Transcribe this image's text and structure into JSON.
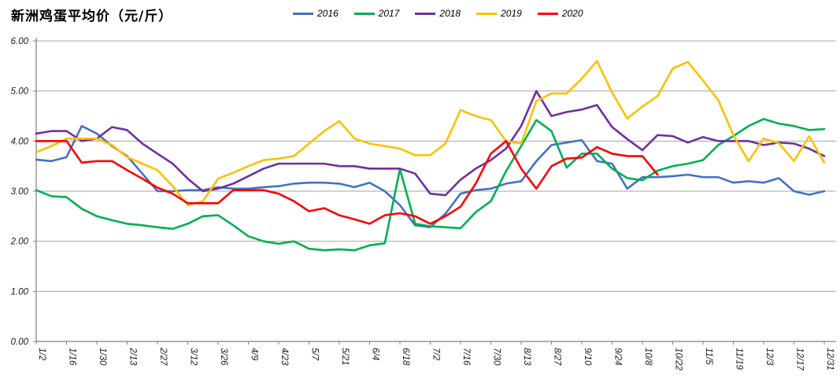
{
  "header": {
    "title": "新洲鸡蛋平均价（元/斤）"
  },
  "legend": {
    "items": [
      {
        "label": "2016",
        "color": "#4472C4"
      },
      {
        "label": "2017",
        "color": "#00B050"
      },
      {
        "label": "2018",
        "color": "#7030A0"
      },
      {
        "label": "2019",
        "color": "#FFC000"
      },
      {
        "label": "2020",
        "color": "#FF0000"
      }
    ]
  },
  "colors": {
    "gridline": "#A6A6A6",
    "axis": "#808080",
    "tick_text": "#1a1a1a"
  },
  "chart_data": {
    "type": "line",
    "title": "新洲鸡蛋平均价（元/斤）",
    "xlabel": "",
    "ylabel": "",
    "ylim": [
      0,
      6
    ],
    "y_ticks": [
      0,
      1,
      2,
      3,
      4,
      5,
      6
    ],
    "y_tick_labels": [
      "0.00",
      "1.00",
      "2.00",
      "3.00",
      "4.00",
      "5.00",
      "6.00"
    ],
    "grid": "horizontal",
    "legend_position": "top",
    "x_tick_labels": [
      "1/2",
      "1/16",
      "1/30",
      "2/13",
      "2/27",
      "3/12",
      "3/26",
      "4/9",
      "4/23",
      "5/7",
      "5/21",
      "6/4",
      "6/18",
      "7/2",
      "7/16",
      "7/30",
      "8/13",
      "8/27",
      "9/10",
      "9/24",
      "10/8",
      "10/22",
      "11/5",
      "11/19",
      "12/3",
      "12/17",
      "12/31"
    ],
    "x": [
      "1/2",
      "1/9",
      "1/16",
      "1/23",
      "1/30",
      "2/6",
      "2/13",
      "2/20",
      "2/27",
      "3/5",
      "3/12",
      "3/19",
      "3/26",
      "4/2",
      "4/9",
      "4/16",
      "4/23",
      "4/30",
      "5/7",
      "5/14",
      "5/21",
      "5/28",
      "6/4",
      "6/11",
      "6/18",
      "6/25",
      "7/2",
      "7/9",
      "7/16",
      "7/23",
      "7/30",
      "8/6",
      "8/13",
      "8/20",
      "8/27",
      "9/3",
      "9/10",
      "9/17",
      "9/24",
      "10/1",
      "10/8",
      "10/15",
      "10/22",
      "10/29",
      "11/5",
      "11/12",
      "11/19",
      "11/26",
      "12/3",
      "12/10",
      "12/17",
      "12/24",
      "12/31"
    ],
    "series": [
      {
        "name": "2016",
        "color": "#4472C4",
        "values": [
          3.63,
          3.6,
          3.68,
          4.3,
          4.15,
          3.9,
          3.7,
          3.35,
          3.0,
          3.0,
          3.02,
          3.02,
          3.08,
          3.05,
          3.05,
          3.08,
          3.1,
          3.15,
          3.17,
          3.17,
          3.15,
          3.08,
          3.17,
          3.0,
          2.72,
          2.32,
          2.28,
          2.55,
          2.95,
          3.02,
          3.05,
          3.15,
          3.2,
          3.6,
          3.92,
          3.97,
          4.02,
          3.6,
          3.55,
          3.05,
          3.28,
          3.28,
          3.3,
          3.33,
          3.28,
          3.28,
          3.17,
          3.2,
          3.17,
          3.26,
          3.0,
          2.93,
          3.0
        ]
      },
      {
        "name": "2017",
        "color": "#00B050",
        "values": [
          3.02,
          2.9,
          2.88,
          2.65,
          2.5,
          2.42,
          2.35,
          2.32,
          2.28,
          2.25,
          2.35,
          2.5,
          2.52,
          2.32,
          2.1,
          2.0,
          1.95,
          2.0,
          1.85,
          1.82,
          1.84,
          1.82,
          1.92,
          1.96,
          3.44,
          2.35,
          2.3,
          2.28,
          2.26,
          2.58,
          2.8,
          3.4,
          3.9,
          4.42,
          4.2,
          3.47,
          3.75,
          3.75,
          3.45,
          3.26,
          3.22,
          3.41,
          3.5,
          3.55,
          3.62,
          3.92,
          4.1,
          4.3,
          4.44,
          4.35,
          4.3,
          4.22,
          4.24
        ]
      },
      {
        "name": "2018",
        "color": "#7030A0",
        "values": [
          4.15,
          4.2,
          4.2,
          4.0,
          4.05,
          4.28,
          4.22,
          3.95,
          3.75,
          3.55,
          3.25,
          3.0,
          3.05,
          3.15,
          3.3,
          3.45,
          3.55,
          3.55,
          3.55,
          3.55,
          3.5,
          3.5,
          3.45,
          3.45,
          3.45,
          3.35,
          2.95,
          2.92,
          3.23,
          3.45,
          3.62,
          3.85,
          4.3,
          5.0,
          4.5,
          4.58,
          4.63,
          4.72,
          4.28,
          4.04,
          3.82,
          4.12,
          4.1,
          3.97,
          4.08,
          4.0,
          4.0,
          4.0,
          3.92,
          3.97,
          3.95,
          3.85,
          3.7
        ]
      },
      {
        "name": "2019",
        "color": "#FFC000",
        "values": [
          3.78,
          3.9,
          4.05,
          4.05,
          4.05,
          3.92,
          3.68,
          3.55,
          3.42,
          3.1,
          2.72,
          2.8,
          3.25,
          3.37,
          3.5,
          3.62,
          3.65,
          3.7,
          3.95,
          4.2,
          4.4,
          4.05,
          3.95,
          3.9,
          3.85,
          3.72,
          3.72,
          3.95,
          4.62,
          4.5,
          4.42,
          4.0,
          3.95,
          4.8,
          4.95,
          4.95,
          5.25,
          5.6,
          4.97,
          4.45,
          4.69,
          4.9,
          5.45,
          5.58,
          5.21,
          4.82,
          4.12,
          3.6,
          4.05,
          3.96,
          3.6,
          4.1,
          3.57
        ]
      },
      {
        "name": "2020",
        "color": "#FF0000",
        "values": [
          4.0,
          4.0,
          4.0,
          3.57,
          3.6,
          3.6,
          3.42,
          3.25,
          3.07,
          2.95,
          2.76,
          2.76,
          2.76,
          3.02,
          3.02,
          3.02,
          2.95,
          2.8,
          2.6,
          2.66,
          2.52,
          2.44,
          2.35,
          2.52,
          2.56,
          2.5,
          2.35,
          2.5,
          2.69,
          3.15,
          3.75,
          4.0,
          3.45,
          3.05,
          3.5,
          3.65,
          3.67,
          3.88,
          3.75,
          3.7,
          3.7,
          3.33,
          null,
          null,
          null,
          null,
          null,
          null,
          null,
          null,
          null,
          null,
          null
        ]
      }
    ]
  }
}
